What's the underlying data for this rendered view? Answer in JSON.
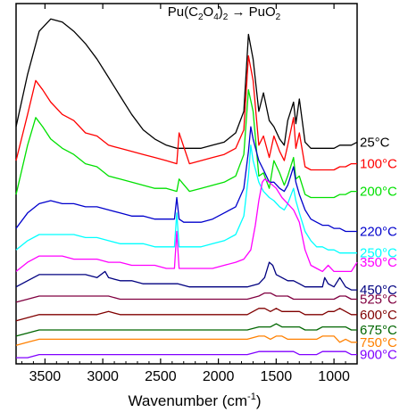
{
  "chart_data": {
    "type": "line",
    "title": "Pu(C2O4)2 → PuO2",
    "title_parts": {
      "a": "Pu(C",
      "b": "2",
      "c": "O",
      "d": "4",
      "e": ")",
      "f": "2",
      "g": " → PuO",
      "h": "2"
    },
    "xlabel": "Wavenumber (cm",
    "xlabel_sup": "-1",
    "xlabel_end": ")",
    "ylabel": "",
    "xlim": [
      3750,
      800
    ],
    "x_reversed": true,
    "x_ticks": [
      3500,
      3000,
      2500,
      2000,
      1500,
      1000
    ],
    "x_tick_labels": [
      "3500",
      "3000",
      "2500",
      "2000",
      "1500",
      "1000"
    ],
    "y_ticks_shown": false,
    "grid": false,
    "legend_placement": "right, labels at curve ends",
    "series": [
      {
        "name": "25°C",
        "color": "#000000",
        "x": [
          3750,
          3650,
          3550,
          3450,
          3350,
          3250,
          3150,
          3050,
          2950,
          2850,
          2750,
          2650,
          2550,
          2450,
          2360,
          2250,
          2150,
          2050,
          1950,
          1850,
          1780,
          1740,
          1700,
          1650,
          1610,
          1560,
          1520,
          1470,
          1430,
          1400,
          1350,
          1330,
          1300,
          1250,
          1200,
          1150,
          1100,
          1050,
          1000,
          950,
          900,
          850,
          800
        ],
        "y": [
          0.58,
          0.75,
          0.89,
          0.93,
          0.92,
          0.89,
          0.85,
          0.8,
          0.74,
          0.68,
          0.62,
          0.57,
          0.54,
          0.52,
          0.51,
          0.51,
          0.51,
          0.52,
          0.53,
          0.56,
          0.63,
          0.88,
          0.8,
          0.63,
          0.69,
          0.6,
          0.58,
          0.54,
          0.52,
          0.6,
          0.66,
          0.59,
          0.67,
          0.53,
          0.51,
          0.51,
          0.51,
          0.51,
          0.51,
          0.52,
          0.52,
          0.52,
          0.53
        ]
      },
      {
        "name": "100°C",
        "color": "#ff0000",
        "x": [
          3750,
          3650,
          3580,
          3520,
          3450,
          3350,
          3250,
          3150,
          3050,
          2950,
          2850,
          2750,
          2650,
          2550,
          2450,
          2360,
          2340,
          2250,
          2150,
          2050,
          1950,
          1850,
          1780,
          1740,
          1700,
          1650,
          1610,
          1560,
          1520,
          1470,
          1430,
          1400,
          1350,
          1330,
          1300,
          1250,
          1200,
          1150,
          1100,
          1050,
          1000,
          950,
          900,
          850,
          800
        ],
        "y": [
          0.47,
          0.62,
          0.73,
          0.7,
          0.66,
          0.62,
          0.6,
          0.56,
          0.55,
          0.52,
          0.51,
          0.5,
          0.49,
          0.48,
          0.47,
          0.46,
          0.56,
          0.46,
          0.47,
          0.48,
          0.49,
          0.51,
          0.57,
          0.81,
          0.73,
          0.52,
          0.55,
          0.48,
          0.55,
          0.5,
          0.47,
          0.52,
          0.61,
          0.51,
          0.56,
          0.45,
          0.44,
          0.44,
          0.44,
          0.44,
          0.44,
          0.45,
          0.45,
          0.46,
          0.46
        ]
      },
      {
        "name": "200°C",
        "color": "#00e000",
        "x": [
          3750,
          3650,
          3580,
          3520,
          3450,
          3350,
          3250,
          3150,
          3050,
          2950,
          2850,
          2750,
          2650,
          2550,
          2450,
          2360,
          2340,
          2250,
          2150,
          2050,
          1950,
          1850,
          1780,
          1740,
          1700,
          1650,
          1610,
          1560,
          1520,
          1470,
          1430,
          1400,
          1350,
          1330,
          1300,
          1250,
          1200,
          1150,
          1100,
          1050,
          1000,
          950,
          900,
          850,
          800
        ],
        "y": [
          0.36,
          0.52,
          0.61,
          0.58,
          0.54,
          0.51,
          0.49,
          0.46,
          0.45,
          0.42,
          0.41,
          0.4,
          0.39,
          0.38,
          0.38,
          0.37,
          0.41,
          0.37,
          0.38,
          0.39,
          0.4,
          0.42,
          0.49,
          0.7,
          0.63,
          0.42,
          0.43,
          0.38,
          0.47,
          0.43,
          0.39,
          0.42,
          0.48,
          0.41,
          0.42,
          0.36,
          0.35,
          0.35,
          0.35,
          0.35,
          0.35,
          0.36,
          0.36,
          0.37,
          0.37
        ]
      },
      {
        "name": "220°C",
        "color": "#0000cc",
        "x": [
          3750,
          3650,
          3550,
          3450,
          3350,
          3250,
          3150,
          3050,
          2950,
          2850,
          2750,
          2650,
          2550,
          2450,
          2380,
          2360,
          2340,
          2300,
          2250,
          2150,
          2050,
          1950,
          1850,
          1780,
          1740,
          1720,
          1700,
          1650,
          1610,
          1560,
          1520,
          1470,
          1430,
          1400,
          1350,
          1330,
          1300,
          1250,
          1200,
          1150,
          1100,
          1050,
          1000,
          950,
          900,
          850,
          800
        ],
        "y": [
          0.25,
          0.3,
          0.33,
          0.34,
          0.33,
          0.33,
          0.32,
          0.32,
          0.31,
          0.3,
          0.29,
          0.29,
          0.28,
          0.28,
          0.28,
          0.35,
          0.28,
          0.27,
          0.27,
          0.27,
          0.28,
          0.3,
          0.32,
          0.38,
          0.5,
          0.58,
          0.54,
          0.47,
          0.44,
          0.4,
          0.4,
          0.38,
          0.37,
          0.39,
          0.45,
          0.4,
          0.36,
          0.31,
          0.28,
          0.27,
          0.26,
          0.26,
          0.25,
          0.25,
          0.24,
          0.24,
          0.24
        ]
      },
      {
        "name": "250°C",
        "color": "#00ffff",
        "x": [
          3750,
          3650,
          3550,
          3450,
          3350,
          3250,
          3150,
          3050,
          2950,
          2850,
          2750,
          2650,
          2550,
          2450,
          2380,
          2360,
          2340,
          2300,
          2250,
          2150,
          2050,
          1950,
          1850,
          1780,
          1740,
          1720,
          1700,
          1650,
          1610,
          1560,
          1520,
          1470,
          1430,
          1400,
          1350,
          1330,
          1300,
          1250,
          1200,
          1150,
          1100,
          1050,
          1000,
          950,
          900,
          850,
          800
        ],
        "y": [
          0.18,
          0.21,
          0.23,
          0.23,
          0.23,
          0.23,
          0.22,
          0.22,
          0.21,
          0.2,
          0.2,
          0.2,
          0.19,
          0.19,
          0.19,
          0.3,
          0.19,
          0.19,
          0.19,
          0.19,
          0.2,
          0.21,
          0.23,
          0.29,
          0.42,
          0.52,
          0.47,
          0.4,
          0.37,
          0.35,
          0.34,
          0.32,
          0.31,
          0.33,
          0.38,
          0.34,
          0.3,
          0.24,
          0.21,
          0.19,
          0.19,
          0.18,
          0.18,
          0.17,
          0.17,
          0.17,
          0.17
        ]
      },
      {
        "name": "350°C",
        "color": "#ff00ff",
        "x": [
          3750,
          3650,
          3550,
          3450,
          3350,
          3250,
          3150,
          3050,
          2950,
          2850,
          2750,
          2650,
          2550,
          2450,
          2380,
          2360,
          2340,
          2300,
          2250,
          2150,
          2050,
          1950,
          1850,
          1780,
          1720,
          1680,
          1650,
          1620,
          1600,
          1560,
          1500,
          1450,
          1400,
          1350,
          1300,
          1250,
          1200,
          1150,
          1100,
          1050,
          1000,
          950,
          900,
          850,
          800
        ],
        "y": [
          0.11,
          0.14,
          0.16,
          0.16,
          0.16,
          0.15,
          0.15,
          0.15,
          0.14,
          0.14,
          0.13,
          0.13,
          0.13,
          0.12,
          0.12,
          0.24,
          0.12,
          0.12,
          0.12,
          0.12,
          0.12,
          0.13,
          0.14,
          0.15,
          0.18,
          0.26,
          0.34,
          0.4,
          0.41,
          0.4,
          0.38,
          0.35,
          0.33,
          0.31,
          0.27,
          0.18,
          0.13,
          0.12,
          0.11,
          0.13,
          0.11,
          0.11,
          0.11,
          0.11,
          0.14
        ]
      },
      {
        "name": "450°C",
        "color": "#000080",
        "x": [
          3750,
          3650,
          3550,
          3450,
          3350,
          3250,
          3150,
          3050,
          2980,
          2950,
          2850,
          2750,
          2650,
          2550,
          2450,
          2350,
          2250,
          2150,
          2050,
          1950,
          1850,
          1750,
          1650,
          1600,
          1560,
          1530,
          1500,
          1450,
          1400,
          1350,
          1300,
          1250,
          1200,
          1150,
          1100,
          1080,
          1050,
          1000,
          950,
          900,
          850,
          800
        ],
        "y": [
          0.06,
          0.08,
          0.1,
          0.1,
          0.1,
          0.1,
          0.1,
          0.09,
          0.11,
          0.09,
          0.08,
          0.08,
          0.07,
          0.07,
          0.07,
          0.07,
          0.06,
          0.06,
          0.06,
          0.06,
          0.06,
          0.06,
          0.07,
          0.09,
          0.14,
          0.13,
          0.1,
          0.09,
          0.08,
          0.08,
          0.07,
          0.06,
          0.06,
          0.06,
          0.06,
          0.09,
          0.07,
          0.06,
          0.09,
          0.06,
          0.05,
          0.05
        ]
      },
      {
        "name": "525°C",
        "color": "#800040",
        "x": [
          3750,
          3650,
          3550,
          3450,
          3350,
          3250,
          3150,
          3050,
          2950,
          2850,
          2750,
          2650,
          2550,
          2450,
          2350,
          2250,
          2150,
          2050,
          1950,
          1850,
          1750,
          1650,
          1600,
          1550,
          1500,
          1450,
          1400,
          1350,
          1300,
          1250,
          1200,
          1150,
          1100,
          1050,
          1000,
          950,
          900,
          850,
          800
        ],
        "y": [
          0.01,
          0.02,
          0.03,
          0.03,
          0.03,
          0.03,
          0.03,
          0.03,
          0.03,
          0.02,
          0.02,
          0.02,
          0.02,
          0.02,
          0.02,
          0.02,
          0.02,
          0.02,
          0.02,
          0.02,
          0.02,
          0.03,
          0.04,
          0.04,
          0.03,
          0.03,
          0.03,
          0.02,
          0.02,
          0.02,
          0.02,
          0.02,
          0.02,
          0.02,
          0.02,
          0.03,
          0.03,
          0.02,
          0.02
        ]
      },
      {
        "name": "600°C",
        "color": "#800000",
        "x": [
          3750,
          3650,
          3550,
          3450,
          3350,
          3250,
          3150,
          3050,
          2950,
          2850,
          2750,
          2650,
          2550,
          2450,
          2350,
          2250,
          2150,
          2050,
          1950,
          1850,
          1750,
          1650,
          1600,
          1550,
          1500,
          1450,
          1400,
          1350,
          1300,
          1250,
          1200,
          1150,
          1100,
          1050,
          1000,
          950,
          900,
          850,
          800
        ],
        "y": [
          -0.05,
          -0.04,
          -0.03,
          -0.03,
          -0.03,
          -0.03,
          -0.03,
          -0.03,
          -0.02,
          -0.03,
          -0.03,
          -0.03,
          -0.03,
          -0.03,
          -0.03,
          -0.03,
          -0.03,
          -0.03,
          -0.03,
          -0.03,
          -0.03,
          -0.01,
          -0.01,
          -0.02,
          -0.01,
          -0.02,
          -0.02,
          -0.02,
          -0.02,
          -0.03,
          -0.03,
          -0.03,
          -0.03,
          -0.02,
          -0.02,
          -0.01,
          -0.02,
          -0.03,
          -0.03
        ]
      },
      {
        "name": "675°C",
        "color": "#006600",
        "x": [
          3750,
          3650,
          3550,
          3450,
          3350,
          3250,
          3150,
          3050,
          2950,
          2850,
          2750,
          2650,
          2550,
          2450,
          2350,
          2250,
          2150,
          2050,
          1950,
          1850,
          1750,
          1650,
          1600,
          1550,
          1500,
          1450,
          1400,
          1350,
          1300,
          1250,
          1200,
          1150,
          1100,
          1050,
          1000,
          950,
          900,
          850,
          800
        ],
        "y": [
          -0.1,
          -0.09,
          -0.08,
          -0.08,
          -0.08,
          -0.08,
          -0.08,
          -0.08,
          -0.08,
          -0.08,
          -0.08,
          -0.08,
          -0.08,
          -0.08,
          -0.08,
          -0.08,
          -0.08,
          -0.08,
          -0.08,
          -0.08,
          -0.08,
          -0.07,
          -0.07,
          -0.07,
          -0.06,
          -0.07,
          -0.07,
          -0.07,
          -0.07,
          -0.08,
          -0.08,
          -0.08,
          -0.07,
          -0.07,
          -0.07,
          -0.07,
          -0.07,
          -0.08,
          -0.08
        ]
      },
      {
        "name": "750°C",
        "color": "#ff8000",
        "x": [
          3750,
          3650,
          3550,
          3450,
          3350,
          3250,
          3150,
          3050,
          2950,
          2850,
          2750,
          2650,
          2550,
          2450,
          2350,
          2250,
          2150,
          2050,
          1950,
          1850,
          1750,
          1650,
          1600,
          1550,
          1500,
          1450,
          1400,
          1350,
          1300,
          1250,
          1200,
          1150,
          1100,
          1050,
          1000,
          950,
          900,
          850,
          800
        ],
        "y": [
          -0.13,
          -0.12,
          -0.11,
          -0.11,
          -0.11,
          -0.11,
          -0.11,
          -0.11,
          -0.11,
          -0.11,
          -0.11,
          -0.11,
          -0.11,
          -0.11,
          -0.11,
          -0.11,
          -0.11,
          -0.11,
          -0.11,
          -0.11,
          -0.11,
          -0.1,
          -0.1,
          -0.11,
          -0.1,
          -0.1,
          -0.11,
          -0.11,
          -0.11,
          -0.11,
          -0.11,
          -0.11,
          -0.1,
          -0.1,
          -0.1,
          -0.12,
          -0.11,
          -0.12,
          -0.12
        ]
      },
      {
        "name": "900°C",
        "color": "#8000ff",
        "x": [
          3750,
          3650,
          3550,
          3450,
          3350,
          3250,
          3150,
          3050,
          2950,
          2850,
          2750,
          2650,
          2550,
          2450,
          2350,
          2250,
          2150,
          2050,
          1950,
          1850,
          1750,
          1650,
          1600,
          1550,
          1500,
          1450,
          1400,
          1350,
          1300,
          1250,
          1200,
          1150,
          1100,
          1050,
          1000,
          950,
          900,
          850,
          800
        ],
        "y": [
          -0.17,
          -0.17,
          -0.16,
          -0.16,
          -0.16,
          -0.16,
          -0.16,
          -0.16,
          -0.16,
          -0.16,
          -0.16,
          -0.16,
          -0.16,
          -0.16,
          -0.16,
          -0.16,
          -0.16,
          -0.16,
          -0.16,
          -0.16,
          -0.16,
          -0.15,
          -0.15,
          -0.15,
          -0.15,
          -0.15,
          -0.15,
          -0.15,
          -0.16,
          -0.16,
          -0.16,
          -0.16,
          -0.15,
          -0.15,
          -0.15,
          -0.15,
          -0.15,
          -0.16,
          -0.16
        ]
      }
    ],
    "ylim": [
      -0.19,
      0.98
    ]
  }
}
